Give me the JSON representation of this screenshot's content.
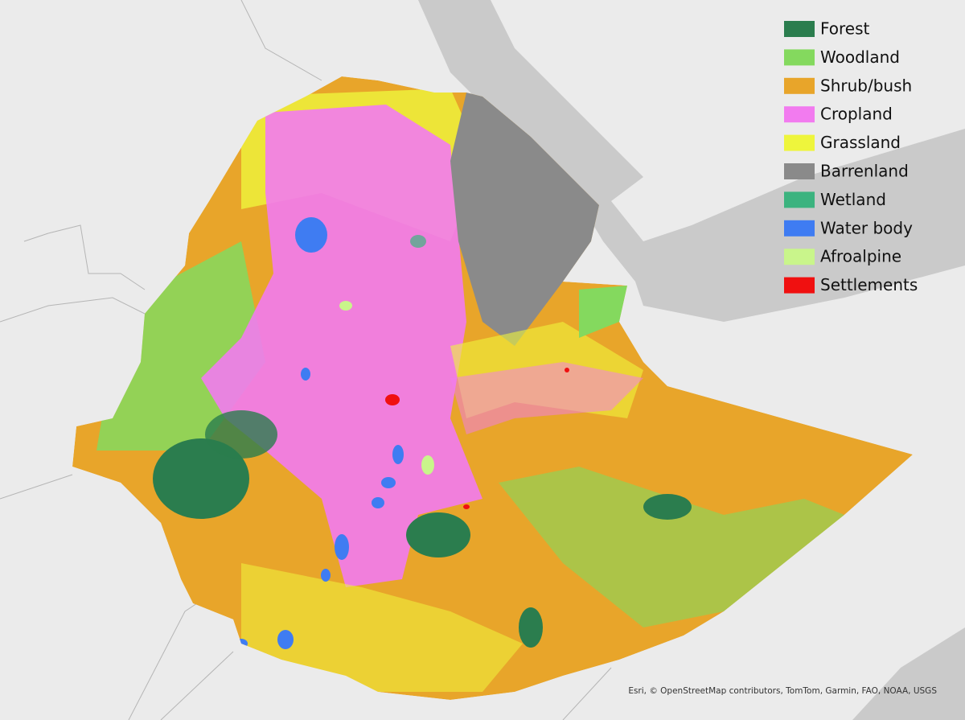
{
  "legend": {
    "items": [
      {
        "label": "Forest",
        "color": "#2b7d4e"
      },
      {
        "label": "Woodland",
        "color": "#84d95e"
      },
      {
        "label": "Shrub/bush",
        "color": "#e8a52a"
      },
      {
        "label": "Cropland",
        "color": "#f27bef"
      },
      {
        "label": "Grassland",
        "color": "#eef53c"
      },
      {
        "label": "Barrenland",
        "color": "#8a8a8a"
      },
      {
        "label": "Wetland",
        "color": "#3cb37f"
      },
      {
        "label": "Water body",
        "color": "#3f7cf2"
      },
      {
        "label": "Afroalpine",
        "color": "#c9f58b"
      },
      {
        "label": "Settlements",
        "color": "#f01010"
      }
    ]
  },
  "attribution": "Esri, © OpenStreetMap contributors, TomTom, Garmin, FAO, NOAA, USGS"
}
